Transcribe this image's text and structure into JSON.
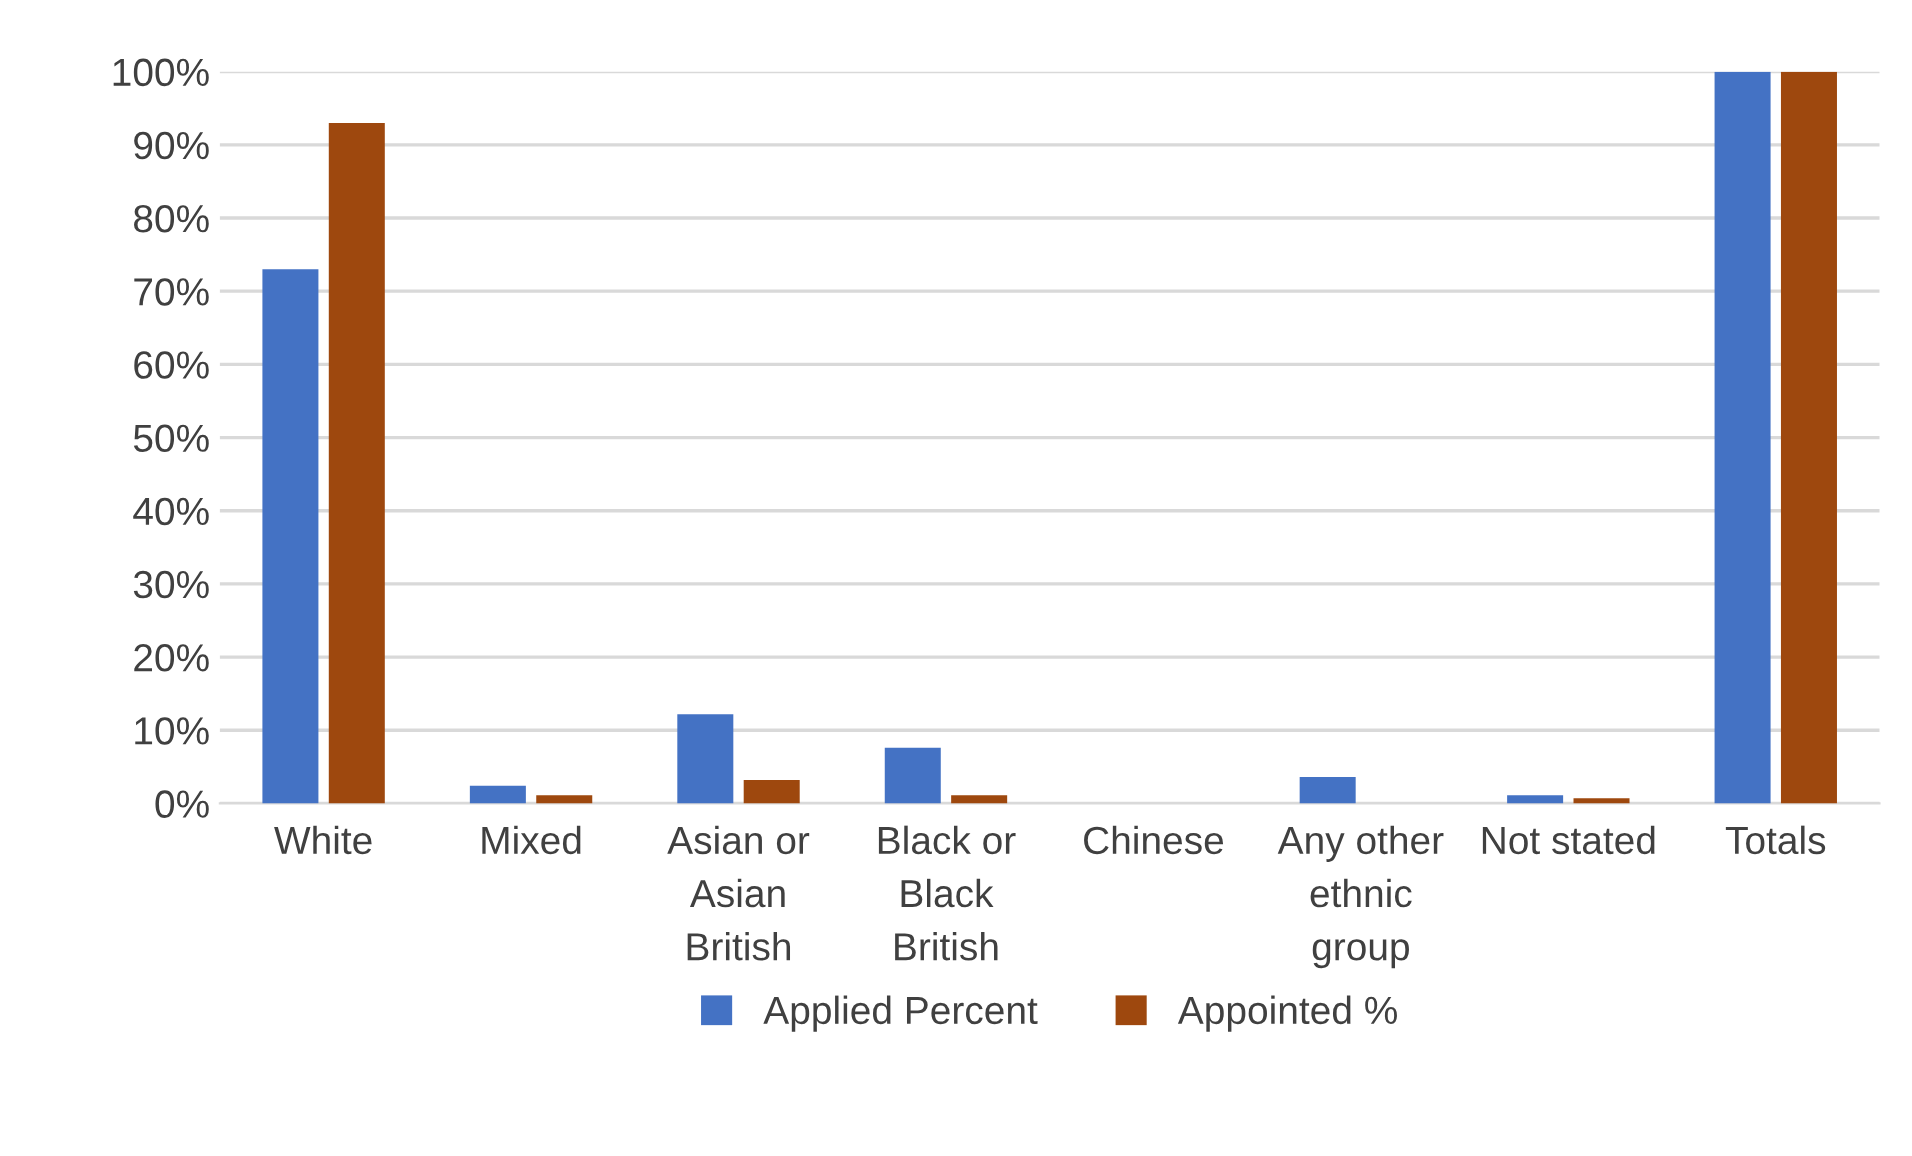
{
  "chart_data": {
    "type": "bar",
    "categories": [
      "White",
      "Mixed",
      "Asian or Asian British",
      "Black or Black British",
      "Chinese",
      "Any other ethnic group",
      "Not stated",
      "Totals"
    ],
    "series": [
      {
        "name": "Applied Percent",
        "color": "#4472c4",
        "values": [
          73,
          2.4,
          12.2,
          7.6,
          0,
          3.6,
          1.1,
          100
        ]
      },
      {
        "name": "Appointed %",
        "color": "#9e480e",
        "values": [
          93,
          1.1,
          3.2,
          1.1,
          0,
          0,
          0.7,
          100
        ]
      }
    ],
    "ylim": [
      0,
      100
    ],
    "yticks": [
      {
        "value": 0,
        "label": "0%"
      },
      {
        "value": 10,
        "label": "10%"
      },
      {
        "value": 20,
        "label": "20%"
      },
      {
        "value": 30,
        "label": "30%"
      },
      {
        "value": 40,
        "label": "40%"
      },
      {
        "value": 50,
        "label": "50%"
      },
      {
        "value": 60,
        "label": "60%"
      },
      {
        "value": 70,
        "label": "70%"
      },
      {
        "value": 80,
        "label": "80%"
      },
      {
        "value": 90,
        "label": "90%"
      },
      {
        "value": 100,
        "label": "100%"
      }
    ],
    "grid": "y",
    "legend": "bottom"
  }
}
